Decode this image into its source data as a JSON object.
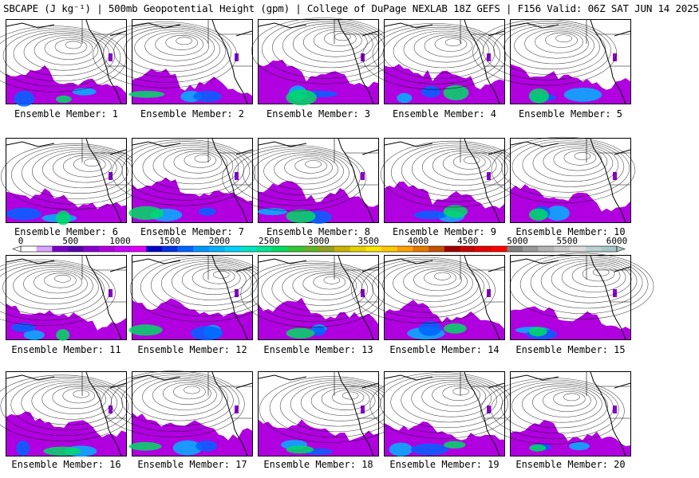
{
  "title": "SBCAPE (J kg⁻¹) | 500mb Geopotential Height (gpm) | College of DuPage NEXLAB 18Z GEFS | F156 Valid: 06Z SAT JUN 14 2025",
  "colorbar": {
    "tick_labels": [
      "0",
      "500",
      "1000",
      "1500",
      "2000",
      "2500",
      "3000",
      "3500",
      "4000",
      "4500",
      "5000",
      "5500",
      "6000"
    ],
    "colors": [
      "#ffffff",
      "#d9a6ff",
      "#7a00c8",
      "#5a00b0",
      "#8a00d0",
      "#b000e0",
      "#cc00ff",
      "#e000ff",
      "#0000c8",
      "#0032e6",
      "#0064ff",
      "#0096ff",
      "#00b4ff",
      "#00d2ff",
      "#00e6c8",
      "#00e696",
      "#00dc64",
      "#32c832",
      "#64b428",
      "#96a01e",
      "#c8b400",
      "#e6d200",
      "#ffe600",
      "#ffc800",
      "#ffa000",
      "#e67800",
      "#c85000",
      "#a00000",
      "#c80000",
      "#e60000",
      "#ff0000",
      "#808080",
      "#999999",
      "#b3b3b3",
      "#c8c8c8",
      "#dddddd",
      "#bcd2d2",
      "#a8c8c8"
    ]
  },
  "members": [
    {
      "label": "Ensemble Member: 1"
    },
    {
      "label": "Ensemble Member: 2"
    },
    {
      "label": "Ensemble Member: 3"
    },
    {
      "label": "Ensemble Member: 4"
    },
    {
      "label": "Ensemble Member: 5"
    },
    {
      "label": "Ensemble Member: 6"
    },
    {
      "label": "Ensemble Member: 7"
    },
    {
      "label": "Ensemble Member: 8"
    },
    {
      "label": "Ensemble Member: 9"
    },
    {
      "label": "Ensemble Member: 10"
    },
    {
      "label": "Ensemble Member: 11"
    },
    {
      "label": "Ensemble Member: 12"
    },
    {
      "label": "Ensemble Member: 13"
    },
    {
      "label": "Ensemble Member: 14"
    },
    {
      "label": "Ensemble Member: 15"
    },
    {
      "label": "Ensemble Member: 16"
    },
    {
      "label": "Ensemble Member: 17"
    },
    {
      "label": "Ensemble Member: 18"
    },
    {
      "label": "Ensemble Member: 19"
    },
    {
      "label": "Ensemble Member: 20"
    }
  ]
}
